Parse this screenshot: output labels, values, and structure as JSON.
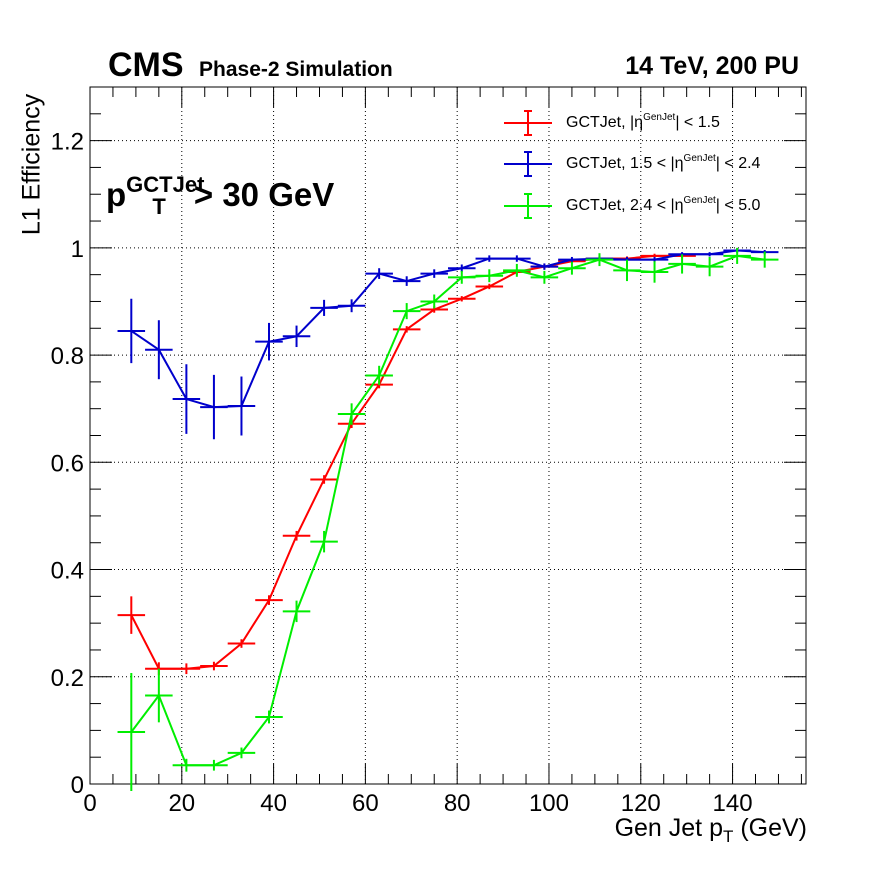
{
  "header": {
    "experiment": "CMS",
    "status": "Phase-2 Simulation",
    "energy": "14 TeV, 200 PU"
  },
  "annotation": {
    "main": "p",
    "superscript": "GCTJet",
    "subscript": "T",
    "cut": "> 30 GeV"
  },
  "axes": {
    "ylabel": "L1 Efficiency",
    "xlabel_main": "Gen Jet p",
    "xlabel_sub": "T",
    "xlabel_unit": " (GeV)"
  },
  "legend": [
    {
      "prefix": "GCTJet, |η",
      "sup": "GenJet",
      "suffix": "| < 1.5"
    },
    {
      "prefix": "GCTJet, 1.5 < |η",
      "sup": "GenJet",
      "suffix": "| < 2.4"
    },
    {
      "prefix": "GCTJet, 2.4 < |η",
      "sup": "GenJet",
      "suffix": "| < 5.0"
    }
  ],
  "chart_data": {
    "type": "line",
    "title": "",
    "xlabel": "Gen Jet pT (GeV)",
    "ylabel": "L1 Efficiency",
    "xlim": [
      0,
      156
    ],
    "ylim": [
      0,
      1.3
    ],
    "xticks": [
      0,
      20,
      40,
      60,
      80,
      100,
      120,
      140
    ],
    "yticks": [
      0,
      0.2,
      0.4,
      0.6,
      0.8,
      1,
      1.2
    ],
    "ytick_labels": [
      "0",
      "0.2",
      "0.4",
      "0.6",
      "0.8",
      "1",
      "1.2"
    ],
    "grid": true,
    "legend_position": "top-right",
    "x_half_width": 3,
    "series": [
      {
        "name": "GCTJet, |ηGenJet| < 1.5",
        "color": "#ff0000",
        "x": [
          9,
          15,
          21,
          27,
          33,
          39,
          45,
          51,
          57,
          63,
          69,
          75,
          81,
          87,
          93,
          99,
          105,
          111,
          117,
          123,
          129
        ],
        "y": [
          0.315,
          0.215,
          0.215,
          0.22,
          0.262,
          0.343,
          0.463,
          0.568,
          0.672,
          0.745,
          0.848,
          0.885,
          0.905,
          0.928,
          0.955,
          0.965,
          0.975,
          0.98,
          0.98,
          0.985,
          0.985
        ],
        "err": [
          0.035,
          0.012,
          0.01,
          0.008,
          0.008,
          0.009,
          0.009,
          0.008,
          0.008,
          0.007,
          0.006,
          0.006,
          0.005,
          0.005,
          0.005,
          0.005,
          0.004,
          0.004,
          0.004,
          0.004,
          0.004
        ]
      },
      {
        "name": "GCTJet, 1.5 < |ηGenJet| < 2.4",
        "color": "#0000cc",
        "x": [
          9,
          15,
          21,
          27,
          33,
          39,
          45,
          51,
          57,
          63,
          69,
          75,
          81,
          87,
          93,
          99,
          105,
          111,
          117,
          123,
          129,
          135,
          141,
          147
        ],
        "y": [
          0.845,
          0.81,
          0.718,
          0.703,
          0.705,
          0.825,
          0.835,
          0.888,
          0.892,
          0.952,
          0.938,
          0.952,
          0.962,
          0.98,
          0.98,
          0.965,
          0.978,
          0.98,
          0.978,
          0.978,
          0.988,
          0.988,
          0.995,
          0.992
        ],
        "err": [
          0.06,
          0.055,
          0.065,
          0.06,
          0.055,
          0.035,
          0.02,
          0.015,
          0.012,
          0.01,
          0.009,
          0.008,
          0.007,
          0.006,
          0.006,
          0.006,
          0.005,
          0.005,
          0.005,
          0.005,
          0.004,
          0.004,
          0.004,
          0.004
        ]
      },
      {
        "name": "GCTJet, 2.4 < |ηGenJet| < 5.0",
        "color": "#00ee00",
        "x": [
          9,
          15,
          21,
          27,
          33,
          39,
          45,
          51,
          57,
          63,
          69,
          75,
          81,
          87,
          93,
          99,
          105,
          111,
          117,
          123,
          129,
          135,
          141,
          147
        ],
        "y": [
          0.097,
          0.165,
          0.035,
          0.035,
          0.058,
          0.125,
          0.322,
          0.452,
          0.69,
          0.762,
          0.882,
          0.9,
          0.945,
          0.948,
          0.958,
          0.945,
          0.962,
          0.978,
          0.958,
          0.955,
          0.97,
          0.965,
          0.985,
          0.978
        ],
        "err": [
          0.11,
          0.05,
          0.012,
          0.01,
          0.01,
          0.012,
          0.02,
          0.02,
          0.02,
          0.018,
          0.015,
          0.013,
          0.012,
          0.012,
          0.012,
          0.012,
          0.012,
          0.012,
          0.02,
          0.02,
          0.018,
          0.018,
          0.015,
          0.015
        ]
      }
    ]
  }
}
